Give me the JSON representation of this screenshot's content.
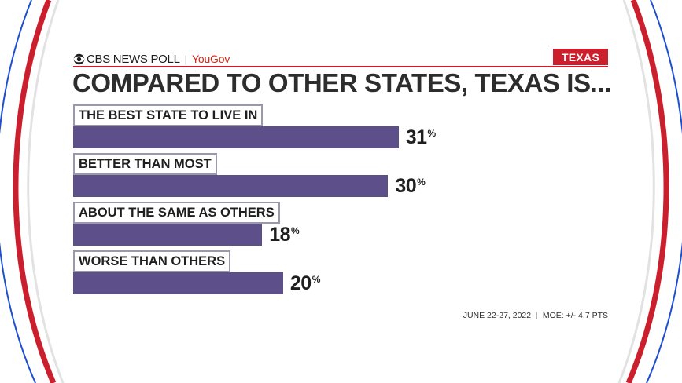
{
  "brand": {
    "name": "CBS NEWS POLL",
    "partner": "YouGov",
    "state_tag": "TEXAS"
  },
  "colors": {
    "bar": "#5c4f8a",
    "accent_red": "#cc1f2d",
    "label_border": "#9b97ad",
    "ring_blue": "#1d4fd0"
  },
  "chart_data": {
    "type": "bar",
    "orientation": "horizontal",
    "title": "COMPARED TO OTHER STATES, TEXAS IS...",
    "categories": [
      "THE BEST STATE TO LIVE IN",
      "BETTER THAN MOST",
      "ABOUT THE SAME AS OTHERS",
      "WORSE THAN OTHERS"
    ],
    "values": [
      31,
      30,
      18,
      20
    ],
    "value_labels": [
      "31",
      "30",
      "18",
      "20"
    ],
    "unit": "%",
    "xlim": [
      0,
      40
    ],
    "grid": false,
    "legend": "none"
  },
  "footer": {
    "dates": "JUNE 22-27, 2022",
    "separator": "|",
    "moe": "MOE: +/- 4.7 PTS"
  }
}
